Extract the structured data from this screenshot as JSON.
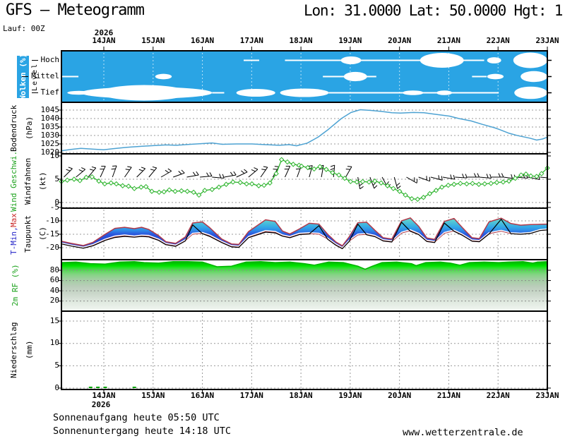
{
  "header": {
    "title": "GFS – Meteogramm",
    "coords": "Lon: 31.0000 Lat: 50.0000 Hgt: 1",
    "run_label": "Lauf: 00Z"
  },
  "time_axis": {
    "year": "2026",
    "days": [
      "14JAN",
      "15JAN",
      "16JAN",
      "17JAN",
      "18JAN",
      "19JAN",
      "20JAN",
      "21JAN",
      "22JAN",
      "23JAN"
    ]
  },
  "footer": {
    "sunrise": "Sonnenaufgang heute 05:50 UTC",
    "sunset": "Sonnenuntergang heute 14:18 UTC",
    "website": "www.wetterzentrale.de"
  },
  "colors": {
    "cloud_bg": "#2aa4e4",
    "cloud_grid": "#b9e2f6",
    "pressure_line": "#4da2d2",
    "wind_line": "#2cb42c",
    "label_green": "#1ea31e",
    "label_blue": "#2424c8",
    "label_red": "#c82424",
    "temp_max_line": "#b23a4a",
    "dew_line": "#000000",
    "rh_edge": "#00b400",
    "precip_bar": "#00a000",
    "grid": "#999999"
  },
  "panels": {
    "clouds": {
      "label": "Wolken (%)",
      "axis_label": "Level",
      "levels": [
        "Hoch",
        "Mittel",
        "Tief"
      ]
    },
    "pressure": {
      "label": "Bodendruck",
      "unit": "(hPa)"
    },
    "wind": {
      "label": "Wind Geschwi.",
      "label2": "Windfahnen",
      "unit": "(kt)"
    },
    "temp": {
      "label_min": "T-Min, ",
      "label_max": "Max",
      "label2": "Taupunkt",
      "unit": "(C)"
    },
    "rh": {
      "label": "2m RF (%)"
    },
    "precip": {
      "label": "Niederschlag",
      "unit": "(mm)"
    }
  },
  "chart_data": [
    {
      "id": "clouds",
      "type": "area",
      "title": "Wolken (%)",
      "y_categories": [
        "Hoch",
        "Mittel",
        "Tief"
      ],
      "segments": {
        "Hoch": [
          [
            0.375,
            0.407,
            0.1
          ],
          [
            0.46,
            0.54,
            0.08
          ],
          [
            0.52,
            0.87,
            0.07
          ],
          [
            0.575,
            0.617,
            0.5
          ],
          [
            0.738,
            0.828,
            0.95
          ],
          [
            0.876,
            0.905,
            0.4
          ],
          [
            0.93,
            1,
            1
          ]
        ],
        "Mittel": [
          [
            0,
            0.035,
            0.1
          ],
          [
            0.193,
            0.227,
            0.35
          ],
          [
            0.538,
            0.648,
            0.08
          ],
          [
            0.581,
            0.629,
            0.6
          ],
          [
            0.845,
            0.875,
            0.08
          ],
          [
            0.876,
            0.91,
            0.35
          ],
          [
            0.945,
            1,
            0.7
          ]
        ],
        "Tief": [
          [
            0.012,
            0.06,
            0.25
          ],
          [
            0.04,
            0.31,
            0.75
          ],
          [
            0.08,
            0.26,
            1
          ],
          [
            0.31,
            0.335,
            0.08
          ],
          [
            0.36,
            0.44,
            0.5
          ],
          [
            0.45,
            0.55,
            0.55
          ],
          [
            0.55,
            0.69,
            0.08
          ],
          [
            0.68,
            0.9,
            0.06
          ],
          [
            0.702,
            0.745,
            0.3
          ],
          [
            0.772,
            0.804,
            0.3
          ],
          [
            0.932,
            1,
            0.8
          ]
        ]
      }
    },
    {
      "id": "pressure",
      "type": "line",
      "ylabel": "Bodendruck (hPa)",
      "ylim": [
        1020,
        1050
      ],
      "yticks": [
        1045,
        1040,
        1035,
        1030,
        1025,
        1020
      ],
      "points": [
        [
          0,
          1021
        ],
        [
          0.02,
          1021.8
        ],
        [
          0.04,
          1022.4
        ],
        [
          0.062,
          1022
        ],
        [
          0.087,
          1021.6
        ],
        [
          0.106,
          1022.2
        ],
        [
          0.135,
          1023
        ],
        [
          0.164,
          1023.6
        ],
        [
          0.189,
          1024
        ],
        [
          0.215,
          1024.4
        ],
        [
          0.237,
          1024.2
        ],
        [
          0.266,
          1024.8
        ],
        [
          0.29,
          1025.2
        ],
        [
          0.31,
          1025.6
        ],
        [
          0.331,
          1024.8
        ],
        [
          0.36,
          1025
        ],
        [
          0.392,
          1025
        ],
        [
          0.419,
          1024.6
        ],
        [
          0.448,
          1024.2
        ],
        [
          0.469,
          1024.6
        ],
        [
          0.484,
          1023.9
        ],
        [
          0.506,
          1025.5
        ],
        [
          0.528,
          1029
        ],
        [
          0.549,
          1033.5
        ],
        [
          0.576,
          1040
        ],
        [
          0.596,
          1043.6
        ],
        [
          0.615,
          1045.2
        ],
        [
          0.637,
          1044.8
        ],
        [
          0.658,
          1044.2
        ],
        [
          0.68,
          1043.4
        ],
        [
          0.698,
          1043.2
        ],
        [
          0.724,
          1043.6
        ],
        [
          0.746,
          1043.4
        ],
        [
          0.767,
          1042.6
        ],
        [
          0.799,
          1041.4
        ],
        [
          0.818,
          1040
        ],
        [
          0.843,
          1038.6
        ],
        [
          0.866,
          1036.6
        ],
        [
          0.891,
          1034.6
        ],
        [
          0.901,
          1033.6
        ],
        [
          0.92,
          1031.4
        ],
        [
          0.939,
          1029.9
        ],
        [
          0.964,
          1028.4
        ],
        [
          0.978,
          1027.3
        ],
        [
          0.99,
          1027.9
        ],
        [
          1,
          1029
        ]
      ]
    },
    {
      "id": "wind",
      "type": "line",
      "ylabel": "Wind (kt)",
      "ylim": [
        0,
        11
      ],
      "yticks": [
        10,
        5,
        0
      ],
      "points": [
        [
          0,
          4.5
        ],
        [
          0.012,
          4.8
        ],
        [
          0.026,
          5
        ],
        [
          0.038,
          4.7
        ],
        [
          0.051,
          5.4
        ],
        [
          0.063,
          5.5
        ],
        [
          0.077,
          4.6
        ],
        [
          0.089,
          4
        ],
        [
          0.102,
          4.2
        ],
        [
          0.113,
          4
        ],
        [
          0.126,
          3.6
        ],
        [
          0.138,
          3.5
        ],
        [
          0.15,
          3
        ],
        [
          0.164,
          3.3
        ],
        [
          0.174,
          3.4
        ],
        [
          0.186,
          2.4
        ],
        [
          0.201,
          2.2
        ],
        [
          0.211,
          2.3
        ],
        [
          0.222,
          2.7
        ],
        [
          0.234,
          2.4
        ],
        [
          0.247,
          2.5
        ],
        [
          0.259,
          2.4
        ],
        [
          0.272,
          2.2
        ],
        [
          0.283,
          1.6
        ],
        [
          0.295,
          2.6
        ],
        [
          0.31,
          2.8
        ],
        [
          0.324,
          3.3
        ],
        [
          0.339,
          3.9
        ],
        [
          0.353,
          4.4
        ],
        [
          0.368,
          4.3
        ],
        [
          0.381,
          4
        ],
        [
          0.392,
          4
        ],
        [
          0.406,
          3.6
        ],
        [
          0.417,
          3.7
        ],
        [
          0.429,
          4.2
        ],
        [
          0.442,
          6.2
        ],
        [
          0.453,
          9.2
        ],
        [
          0.465,
          8.7
        ],
        [
          0.477,
          8.2
        ],
        [
          0.489,
          8
        ],
        [
          0.494,
          7.8
        ],
        [
          0.507,
          7.5
        ],
        [
          0.52,
          7.2
        ],
        [
          0.532,
          7.7
        ],
        [
          0.545,
          7.1
        ],
        [
          0.558,
          6.4
        ],
        [
          0.571,
          5.9
        ],
        [
          0.583,
          5.2
        ],
        [
          0.595,
          4.5
        ],
        [
          0.608,
          4.4
        ],
        [
          0.62,
          4.5
        ],
        [
          0.633,
          4.4
        ],
        [
          0.645,
          4.6
        ],
        [
          0.658,
          4.2
        ],
        [
          0.671,
          3.6
        ],
        [
          0.683,
          3
        ],
        [
          0.696,
          2.4
        ],
        [
          0.708,
          1.6
        ],
        [
          0.721,
          0.8
        ],
        [
          0.733,
          0.7
        ],
        [
          0.745,
          1.1
        ],
        [
          0.758,
          1.9
        ],
        [
          0.771,
          2.6
        ],
        [
          0.783,
          3.3
        ],
        [
          0.796,
          3.7
        ],
        [
          0.808,
          3.9
        ],
        [
          0.821,
          4.1
        ],
        [
          0.834,
          4
        ],
        [
          0.846,
          4.1
        ],
        [
          0.859,
          3.9
        ],
        [
          0.871,
          4
        ],
        [
          0.884,
          4.1
        ],
        [
          0.896,
          4.3
        ],
        [
          0.909,
          4.4
        ],
        [
          0.921,
          4.6
        ],
        [
          0.934,
          5.2
        ],
        [
          0.946,
          5.9
        ],
        [
          0.956,
          6.1
        ],
        [
          0.966,
          5.7
        ],
        [
          0.978,
          5.6
        ],
        [
          0.988,
          6.2
        ],
        [
          1,
          7.4
        ]
      ],
      "barbs": [
        [
          0.005,
          45
        ],
        [
          0.03,
          40
        ],
        [
          0.055,
          50
        ],
        [
          0.08,
          65
        ],
        [
          0.105,
          70
        ],
        [
          0.13,
          55
        ],
        [
          0.155,
          45
        ],
        [
          0.18,
          50
        ],
        [
          0.205,
          30
        ],
        [
          0.23,
          20
        ],
        [
          0.258,
          10
        ],
        [
          0.285,
          5
        ],
        [
          0.31,
          -5
        ],
        [
          0.335,
          10
        ],
        [
          0.36,
          25
        ],
        [
          0.385,
          40
        ],
        [
          0.41,
          55
        ],
        [
          0.435,
          60
        ],
        [
          0.46,
          65
        ],
        [
          0.485,
          70
        ],
        [
          0.51,
          75
        ],
        [
          0.535,
          80
        ],
        [
          0.56,
          85
        ],
        [
          0.585,
          60
        ],
        [
          0.61,
          -80
        ],
        [
          0.635,
          -70
        ],
        [
          0.66,
          -62
        ],
        [
          0.685,
          -75
        ],
        [
          0.71,
          -30
        ],
        [
          0.735,
          -20
        ],
        [
          0.76,
          -15
        ],
        [
          0.785,
          -10
        ],
        [
          0.81,
          -4
        ],
        [
          0.835,
          0
        ],
        [
          0.86,
          -5
        ],
        [
          0.885,
          0
        ],
        [
          0.91,
          -8
        ],
        [
          0.935,
          -5
        ],
        [
          0.96,
          -12
        ],
        [
          0.985,
          -5
        ]
      ]
    },
    {
      "id": "temp",
      "type": "band",
      "ylabel": "T (C)",
      "ylim": [
        -24,
        -4
      ],
      "yticks": [
        -5,
        -10,
        -15,
        -20
      ],
      "x": [
        0,
        0.02,
        0.045,
        0.065,
        0.09,
        0.11,
        0.13,
        0.15,
        0.165,
        0.18,
        0.2,
        0.215,
        0.235,
        0.255,
        0.27,
        0.29,
        0.305,
        0.33,
        0.35,
        0.365,
        0.385,
        0.42,
        0.44,
        0.455,
        0.47,
        0.49,
        0.51,
        0.53,
        0.548,
        0.565,
        0.578,
        0.592,
        0.61,
        0.628,
        0.645,
        0.662,
        0.68,
        0.7,
        0.718,
        0.735,
        0.752,
        0.768,
        0.788,
        0.808,
        0.825,
        0.845,
        0.86,
        0.88,
        0.905,
        0.925,
        0.945,
        0.965,
        0.985,
        1
      ],
      "t_max": [
        -17.6,
        -18.4,
        -19.2,
        -18,
        -15,
        -12.8,
        -12.4,
        -12.9,
        -12.4,
        -13.2,
        -15.5,
        -17.8,
        -18.4,
        -16,
        -10.8,
        -10.4,
        -12.5,
        -16.8,
        -18.6,
        -18.8,
        -14,
        -9.6,
        -10.2,
        -13.8,
        -14.9,
        -13,
        -10.9,
        -11.2,
        -15,
        -17.9,
        -19.3,
        -16,
        -10.7,
        -10.5,
        -13.5,
        -16.3,
        -16.8,
        -10,
        -8.9,
        -12,
        -16.4,
        -16.9,
        -10.2,
        -9.1,
        -12.5,
        -16.3,
        -16.6,
        -10.4,
        -9,
        -11,
        -11.6,
        -11.4,
        -11.3,
        -11.2
      ],
      "t_min": [
        -18.2,
        -19,
        -19.8,
        -18.8,
        -16.8,
        -15.6,
        -15.2,
        -15.6,
        -15.3,
        -15.4,
        -16.8,
        -18.4,
        -19,
        -17,
        -14.6,
        -14.3,
        -15.2,
        -17.6,
        -19.2,
        -19.4,
        -15.8,
        -13.6,
        -13.9,
        -15.2,
        -15.8,
        -14.6,
        -14.4,
        -14.6,
        -16.4,
        -18.6,
        -19.9,
        -17.2,
        -14.9,
        -14.7,
        -15.4,
        -17,
        -17.4,
        -14.2,
        -13.3,
        -14.6,
        -17.2,
        -17.6,
        -14.3,
        -13.4,
        -14.9,
        -17.1,
        -17.3,
        -14.4,
        -13.5,
        -14.4,
        -14.6,
        -14.3,
        -13.2,
        -13
      ],
      "dew": [
        -18.6,
        -19.4,
        -20.2,
        -19.3,
        -17.3,
        -16.2,
        -15.8,
        -16.1,
        -15.8,
        -16,
        -17.3,
        -18.9,
        -19.5,
        -17.5,
        -11.5,
        -14.8,
        -15.8,
        -18.1,
        -19.7,
        -19.9,
        -16.3,
        -14.2,
        -14.5,
        -15.7,
        -16.3,
        -15.1,
        -14.9,
        -11.8,
        -16.9,
        -19.1,
        -20.4,
        -17.7,
        -11.2,
        -15.2,
        -15.9,
        -17.5,
        -17.9,
        -10.5,
        -13.9,
        -15.1,
        -17.7,
        -18.1,
        -10.8,
        -13.9,
        -15.4,
        -17.6,
        -17.8,
        -14.9,
        -9.4,
        -14.8,
        -15,
        -14.7,
        -13.6,
        -13.4
      ]
    },
    {
      "id": "rh",
      "type": "area",
      "ylabel": "2m RF (%)",
      "ylim": [
        0,
        100
      ],
      "yticks": [
        80,
        60,
        40,
        20
      ],
      "points": [
        [
          0,
          95
        ],
        [
          0.03,
          96
        ],
        [
          0.06,
          93
        ],
        [
          0.09,
          92
        ],
        [
          0.12,
          96
        ],
        [
          0.15,
          97
        ],
        [
          0.17,
          95
        ],
        [
          0.2,
          94
        ],
        [
          0.23,
          97
        ],
        [
          0.26,
          97
        ],
        [
          0.29,
          96
        ],
        [
          0.32,
          87
        ],
        [
          0.35,
          88
        ],
        [
          0.38,
          96
        ],
        [
          0.41,
          97
        ],
        [
          0.44,
          95
        ],
        [
          0.47,
          96
        ],
        [
          0.5,
          93
        ],
        [
          0.52,
          90
        ],
        [
          0.55,
          96
        ],
        [
          0.58,
          95
        ],
        [
          0.61,
          88
        ],
        [
          0.625,
          82
        ],
        [
          0.64,
          88
        ],
        [
          0.66,
          95
        ],
        [
          0.69,
          96
        ],
        [
          0.72,
          93
        ],
        [
          0.73,
          89
        ],
        [
          0.75,
          95
        ],
        [
          0.78,
          96
        ],
        [
          0.8,
          94
        ],
        [
          0.82,
          90
        ],
        [
          0.84,
          95
        ],
        [
          0.87,
          96
        ],
        [
          0.9,
          95
        ],
        [
          0.92,
          96
        ],
        [
          0.95,
          97
        ],
        [
          0.97,
          94
        ],
        [
          0.98,
          96
        ],
        [
          1,
          97
        ]
      ]
    },
    {
      "id": "precip",
      "type": "bar",
      "ylabel": "Niederschlag (mm)",
      "ylim": [
        0,
        17.5
      ],
      "yticks": [
        15,
        10,
        5,
        0
      ],
      "bars": [
        [
          0.06,
          0.15
        ],
        [
          0.075,
          0.12
        ],
        [
          0.09,
          0.18
        ],
        [
          0.15,
          0.12
        ]
      ]
    }
  ]
}
